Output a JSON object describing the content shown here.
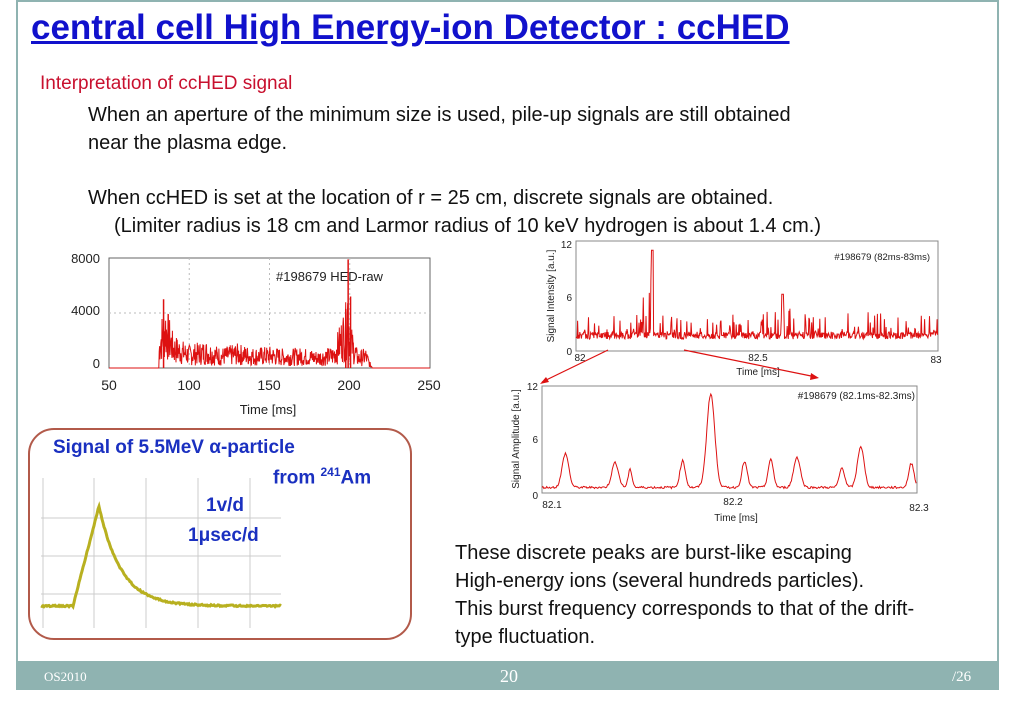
{
  "slide": {
    "title": "central cell High Energy-ion Detector : ccHED",
    "subtitle": "Interpretation of ccHED signal",
    "para1_line1": "When an aperture of the minimum size is used, pile-up signals are still obtained",
    "para1_line2": "near the plasma edge.",
    "para2_line1": "When ccHED is set at the location of r = 25 cm, discrete signals are obtained.",
    "para2_line2": "(Limiter radius is 18 cm and Larmor radius of 10 keV hydrogen is about 1.4 cm.)",
    "alpha_box": {
      "title_prefix": "Signal of 5.5MeV ",
      "alpha_symbol": "α",
      "title_suffix": "-particle",
      "from_text": "from ",
      "isotope_mass": "241",
      "isotope_symbol": "Am",
      "scale_voltage": "1v/d",
      "scale_time_prefix": "1",
      "mu_symbol": "μ",
      "scale_time_suffix": "sec/d"
    },
    "conclusion": [
      "These discrete peaks are burst-like escaping",
      "High-energy ions (several hundreds particles).",
      "This burst frequency corresponds to that of the drift-",
      "type fluctuation."
    ],
    "footer": {
      "left": "OS2010",
      "page": "20",
      "total": "/26"
    },
    "colors": {
      "title": "#1111cc",
      "subtitle": "#c8102e",
      "trace": "#dd1111",
      "box_border": "#b25a4a",
      "box_text": "#1a30c0",
      "footer_bg": "#8fb3b1",
      "scope_trace": "#b8b020"
    }
  },
  "chart_data": [
    {
      "type": "line",
      "label": "#198679 HED-raw",
      "xlabel": "Time [ms]",
      "ylabel": "",
      "x_ticks": [
        "50",
        "100",
        "150",
        "200",
        "250"
      ],
      "y_ticks": [
        "0",
        "4000",
        "8000"
      ],
      "xlim": [
        50,
        250
      ],
      "ylim": [
        0,
        8000
      ],
      "description_points": {
        "x": [
          50,
          80,
          82,
          85,
          90,
          100,
          110,
          120,
          130,
          140,
          150,
          160,
          170,
          180,
          190,
          198,
          199,
          200,
          205,
          210,
          213,
          215,
          250
        ],
        "y": [
          0,
          0,
          3500,
          5000,
          2500,
          1700,
          2000,
          1500,
          1800,
          1500,
          1600,
          1400,
          1500,
          1300,
          1600,
          5000,
          8000,
          3500,
          1200,
          1500,
          300,
          0,
          0
        ]
      }
    },
    {
      "type": "line",
      "label": "#198679 (82ms-83ms)",
      "xlabel": "Time [ms]",
      "ylabel": "Signal Intensity  [a.u.]",
      "x_ticks": [
        "82",
        "82.5",
        "83"
      ],
      "y_ticks": [
        "0",
        "6",
        "12"
      ],
      "xlim": [
        82,
        83
      ],
      "ylim": [
        0,
        12
      ],
      "description_points": {
        "x": [
          82.0,
          82.06,
          82.12,
          82.18,
          82.21,
          82.25,
          82.3,
          82.38,
          82.5,
          82.57,
          82.64,
          82.72,
          82.8,
          82.9,
          83.0
        ],
        "y": [
          1.2,
          3,
          2,
          5,
          11,
          4,
          3.5,
          3,
          4.5,
          6,
          3,
          4.5,
          4,
          3.5,
          2
        ]
      }
    },
    {
      "type": "line",
      "label": "#198679 (82.1ms-82.3ms)",
      "xlabel": "Time [ms]",
      "ylabel": "Signal Amplitude  [a.u.]",
      "x_ticks": [
        "82.1",
        "82.2",
        "82.3"
      ],
      "y_ticks": [
        "0",
        "6",
        "12"
      ],
      "xlim": [
        82.1,
        82.3
      ],
      "ylim": [
        0,
        12
      ],
      "description_points": {
        "x": [
          82.1,
          82.113,
          82.14,
          82.147,
          82.175,
          82.19,
          82.22,
          82.235,
          82.27,
          82.3
        ],
        "y": [
          0.5,
          3.8,
          2.8,
          2,
          3,
          10.5,
          3,
          3.4,
          4.6,
          2.5
        ]
      }
    }
  ]
}
